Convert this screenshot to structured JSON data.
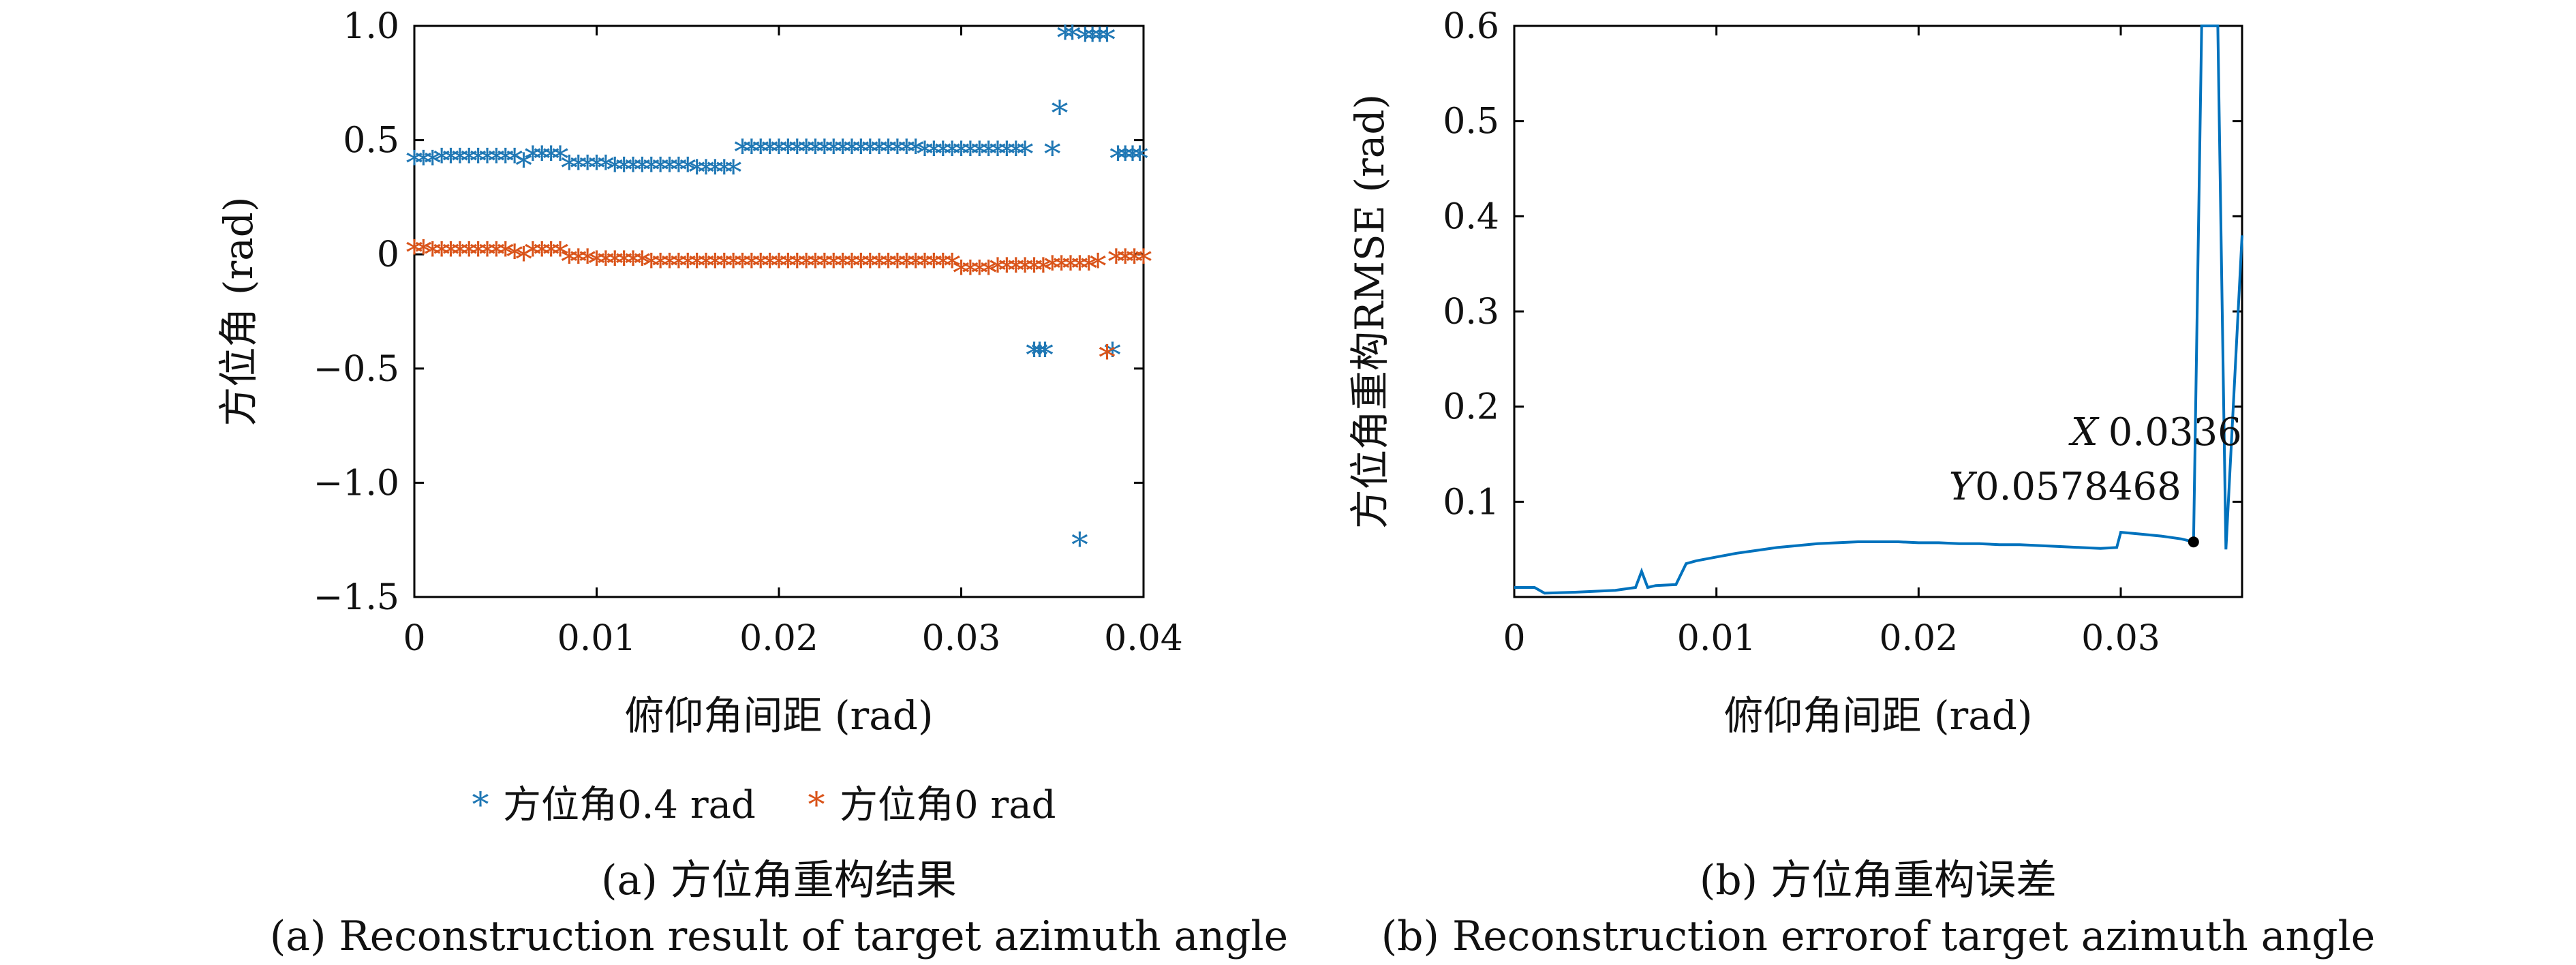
{
  "chart_data": [
    {
      "panel": "a",
      "type": "scatter",
      "title": "",
      "xlabel": "俯仰角间距 (rad)",
      "ylabel": "方位角 (rad)",
      "xlim": [
        0,
        0.04
      ],
      "ylim": [
        -1.5,
        1.0
      ],
      "xticks": [
        0,
        0.01,
        0.02,
        0.03,
        0.04
      ],
      "xtick_labels": [
        "0",
        "0.01",
        "0.02",
        "0.03",
        "0.04"
      ],
      "yticks": [
        1.0,
        0.5,
        0,
        -0.5,
        -1.0,
        -1.5
      ],
      "ytick_labels": [
        "1.0",
        "0.5",
        "0",
        "−0.5",
        "−1.0",
        "−1.5"
      ],
      "marker": "*",
      "legend_position": "bottom",
      "series": [
        {
          "name": "方位角0.4 rad",
          "color": "#1f77b4",
          "points": [
            [
              0.0,
              0.4
            ],
            [
              0.0005,
              0.4
            ],
            [
              0.001,
              0.4
            ],
            [
              0.0015,
              0.41
            ],
            [
              0.002,
              0.41
            ],
            [
              0.0025,
              0.41
            ],
            [
              0.003,
              0.41
            ],
            [
              0.0035,
              0.41
            ],
            [
              0.004,
              0.41
            ],
            [
              0.0045,
              0.41
            ],
            [
              0.005,
              0.41
            ],
            [
              0.0055,
              0.41
            ],
            [
              0.006,
              0.39
            ],
            [
              0.0065,
              0.42
            ],
            [
              0.007,
              0.42
            ],
            [
              0.0075,
              0.42
            ],
            [
              0.008,
              0.42
            ],
            [
              0.0085,
              0.38
            ],
            [
              0.009,
              0.38
            ],
            [
              0.0095,
              0.38
            ],
            [
              0.01,
              0.38
            ],
            [
              0.0105,
              0.38
            ],
            [
              0.011,
              0.37
            ],
            [
              0.0115,
              0.37
            ],
            [
              0.012,
              0.37
            ],
            [
              0.0125,
              0.37
            ],
            [
              0.013,
              0.37
            ],
            [
              0.0135,
              0.37
            ],
            [
              0.014,
              0.37
            ],
            [
              0.0145,
              0.37
            ],
            [
              0.015,
              0.37
            ],
            [
              0.0155,
              0.36
            ],
            [
              0.016,
              0.36
            ],
            [
              0.0165,
              0.36
            ],
            [
              0.017,
              0.36
            ],
            [
              0.0175,
              0.36
            ],
            [
              0.018,
              0.45
            ],
            [
              0.0185,
              0.45
            ],
            [
              0.019,
              0.45
            ],
            [
              0.0195,
              0.45
            ],
            [
              0.02,
              0.45
            ],
            [
              0.0205,
              0.45
            ],
            [
              0.021,
              0.45
            ],
            [
              0.0215,
              0.45
            ],
            [
              0.022,
              0.45
            ],
            [
              0.0225,
              0.45
            ],
            [
              0.023,
              0.45
            ],
            [
              0.0235,
              0.45
            ],
            [
              0.024,
              0.45
            ],
            [
              0.0245,
              0.45
            ],
            [
              0.025,
              0.45
            ],
            [
              0.0255,
              0.45
            ],
            [
              0.026,
              0.45
            ],
            [
              0.0265,
              0.45
            ],
            [
              0.027,
              0.45
            ],
            [
              0.0275,
              0.45
            ],
            [
              0.028,
              0.44
            ],
            [
              0.0285,
              0.44
            ],
            [
              0.029,
              0.44
            ],
            [
              0.0295,
              0.44
            ],
            [
              0.03,
              0.44
            ],
            [
              0.0305,
              0.44
            ],
            [
              0.031,
              0.44
            ],
            [
              0.0315,
              0.44
            ],
            [
              0.032,
              0.44
            ],
            [
              0.0325,
              0.44
            ],
            [
              0.033,
              0.44
            ],
            [
              0.0335,
              0.44
            ],
            [
              0.034,
              -0.44
            ],
            [
              0.0343,
              -0.44
            ],
            [
              0.0346,
              -0.44
            ],
            [
              0.035,
              0.44
            ],
            [
              0.0354,
              0.62
            ],
            [
              0.0357,
              0.95
            ],
            [
              0.0361,
              0.95
            ],
            [
              0.0365,
              -1.27
            ],
            [
              0.0368,
              0.94
            ],
            [
              0.0372,
              0.94
            ],
            [
              0.0376,
              0.94
            ],
            [
              0.038,
              0.94
            ],
            [
              0.0383,
              -0.44
            ],
            [
              0.0386,
              0.42
            ],
            [
              0.039,
              0.42
            ],
            [
              0.0394,
              0.42
            ],
            [
              0.0398,
              0.42
            ]
          ]
        },
        {
          "name": "方位角0 rad",
          "color": "#d95319",
          "points": [
            [
              0.0,
              0.01
            ],
            [
              0.0005,
              0.01
            ],
            [
              0.001,
              0.0
            ],
            [
              0.0015,
              0.0
            ],
            [
              0.002,
              0.0
            ],
            [
              0.0025,
              0.0
            ],
            [
              0.003,
              0.0
            ],
            [
              0.0035,
              0.0
            ],
            [
              0.004,
              0.0
            ],
            [
              0.0045,
              0.0
            ],
            [
              0.005,
              0.0
            ],
            [
              0.0055,
              -0.01
            ],
            [
              0.006,
              -0.02
            ],
            [
              0.0065,
              0.0
            ],
            [
              0.007,
              0.0
            ],
            [
              0.0075,
              0.0
            ],
            [
              0.008,
              0.0
            ],
            [
              0.0085,
              -0.03
            ],
            [
              0.009,
              -0.03
            ],
            [
              0.0095,
              -0.03
            ],
            [
              0.01,
              -0.04
            ],
            [
              0.0105,
              -0.04
            ],
            [
              0.011,
              -0.04
            ],
            [
              0.0115,
              -0.04
            ],
            [
              0.012,
              -0.04
            ],
            [
              0.0125,
              -0.04
            ],
            [
              0.013,
              -0.05
            ],
            [
              0.0135,
              -0.05
            ],
            [
              0.014,
              -0.05
            ],
            [
              0.0145,
              -0.05
            ],
            [
              0.015,
              -0.05
            ],
            [
              0.0155,
              -0.05
            ],
            [
              0.016,
              -0.05
            ],
            [
              0.0165,
              -0.05
            ],
            [
              0.017,
              -0.05
            ],
            [
              0.0175,
              -0.05
            ],
            [
              0.018,
              -0.05
            ],
            [
              0.0185,
              -0.05
            ],
            [
              0.019,
              -0.05
            ],
            [
              0.0195,
              -0.05
            ],
            [
              0.02,
              -0.05
            ],
            [
              0.0205,
              -0.05
            ],
            [
              0.021,
              -0.05
            ],
            [
              0.0215,
              -0.05
            ],
            [
              0.022,
              -0.05
            ],
            [
              0.0225,
              -0.05
            ],
            [
              0.023,
              -0.05
            ],
            [
              0.0235,
              -0.05
            ],
            [
              0.024,
              -0.05
            ],
            [
              0.0245,
              -0.05
            ],
            [
              0.025,
              -0.05
            ],
            [
              0.0255,
              -0.05
            ],
            [
              0.026,
              -0.05
            ],
            [
              0.0265,
              -0.05
            ],
            [
              0.027,
              -0.05
            ],
            [
              0.0275,
              -0.05
            ],
            [
              0.028,
              -0.05
            ],
            [
              0.0285,
              -0.05
            ],
            [
              0.029,
              -0.05
            ],
            [
              0.0295,
              -0.05
            ],
            [
              0.03,
              -0.08
            ],
            [
              0.0305,
              -0.08
            ],
            [
              0.031,
              -0.08
            ],
            [
              0.0315,
              -0.08
            ],
            [
              0.032,
              -0.07
            ],
            [
              0.0325,
              -0.07
            ],
            [
              0.033,
              -0.07
            ],
            [
              0.0335,
              -0.07
            ],
            [
              0.034,
              -0.07
            ],
            [
              0.0345,
              -0.07
            ],
            [
              0.035,
              -0.06
            ],
            [
              0.0355,
              -0.06
            ],
            [
              0.036,
              -0.06
            ],
            [
              0.0365,
              -0.06
            ],
            [
              0.037,
              -0.06
            ],
            [
              0.0375,
              -0.05
            ],
            [
              0.038,
              -0.45
            ],
            [
              0.0385,
              -0.03
            ],
            [
              0.039,
              -0.03
            ],
            [
              0.0395,
              -0.03
            ],
            [
              0.04,
              -0.03
            ]
          ]
        }
      ],
      "caption_cn": "(a) 方位角重构结果",
      "caption_en": "(a) Reconstruction result of target azimuth angle"
    },
    {
      "panel": "b",
      "type": "line",
      "title": "",
      "xlabel": "俯仰角间距 (rad)",
      "ylabel": "方位角重构RMSE (rad)",
      "xlim": [
        0,
        0.036
      ],
      "ylim": [
        0,
        0.6
      ],
      "xticks": [
        0,
        0.01,
        0.02,
        0.03
      ],
      "xtick_labels": [
        "0",
        "0.01",
        "0.02",
        "0.03"
      ],
      "yticks": [
        0.1,
        0.2,
        0.3,
        0.4,
        0.5,
        0.6
      ],
      "ytick_labels": [
        "0.1",
        "0.2",
        "0.3",
        "0.4",
        "0.5",
        "0.6"
      ],
      "series": [
        {
          "color": "#0072bd",
          "points": [
            [
              0.0,
              0.01
            ],
            [
              0.001,
              0.01
            ],
            [
              0.0015,
              0.004
            ],
            [
              0.003,
              0.005
            ],
            [
              0.005,
              0.007
            ],
            [
              0.006,
              0.01
            ],
            [
              0.0063,
              0.027
            ],
            [
              0.0066,
              0.01
            ],
            [
              0.007,
              0.012
            ],
            [
              0.008,
              0.013
            ],
            [
              0.0085,
              0.035
            ],
            [
              0.009,
              0.038
            ],
            [
              0.01,
              0.042
            ],
            [
              0.011,
              0.046
            ],
            [
              0.012,
              0.049
            ],
            [
              0.013,
              0.052
            ],
            [
              0.014,
              0.054
            ],
            [
              0.015,
              0.056
            ],
            [
              0.016,
              0.057
            ],
            [
              0.017,
              0.058
            ],
            [
              0.018,
              0.058
            ],
            [
              0.019,
              0.058
            ],
            [
              0.02,
              0.057
            ],
            [
              0.021,
              0.057
            ],
            [
              0.022,
              0.056
            ],
            [
              0.023,
              0.056
            ],
            [
              0.024,
              0.055
            ],
            [
              0.025,
              0.055
            ],
            [
              0.026,
              0.054
            ],
            [
              0.027,
              0.053
            ],
            [
              0.028,
              0.052
            ],
            [
              0.029,
              0.051
            ],
            [
              0.0298,
              0.052
            ],
            [
              0.03,
              0.068
            ],
            [
              0.031,
              0.066
            ],
            [
              0.032,
              0.064
            ],
            [
              0.033,
              0.061
            ],
            [
              0.0336,
              0.0578468
            ],
            [
              0.034,
              0.6
            ],
            [
              0.0348,
              0.6
            ],
            [
              0.0352,
              0.05
            ],
            [
              0.036,
              0.38
            ]
          ]
        }
      ],
      "annotation": {
        "x": 0.0336,
        "y": 0.0578468,
        "x_label": "X",
        "x_value": "0.0336",
        "y_label": "Y",
        "y_value": "0.0578468"
      },
      "caption_cn": "(b) 方位角重构误差",
      "caption_en": "(b) Reconstruction errorof target azimuth angle"
    }
  ]
}
